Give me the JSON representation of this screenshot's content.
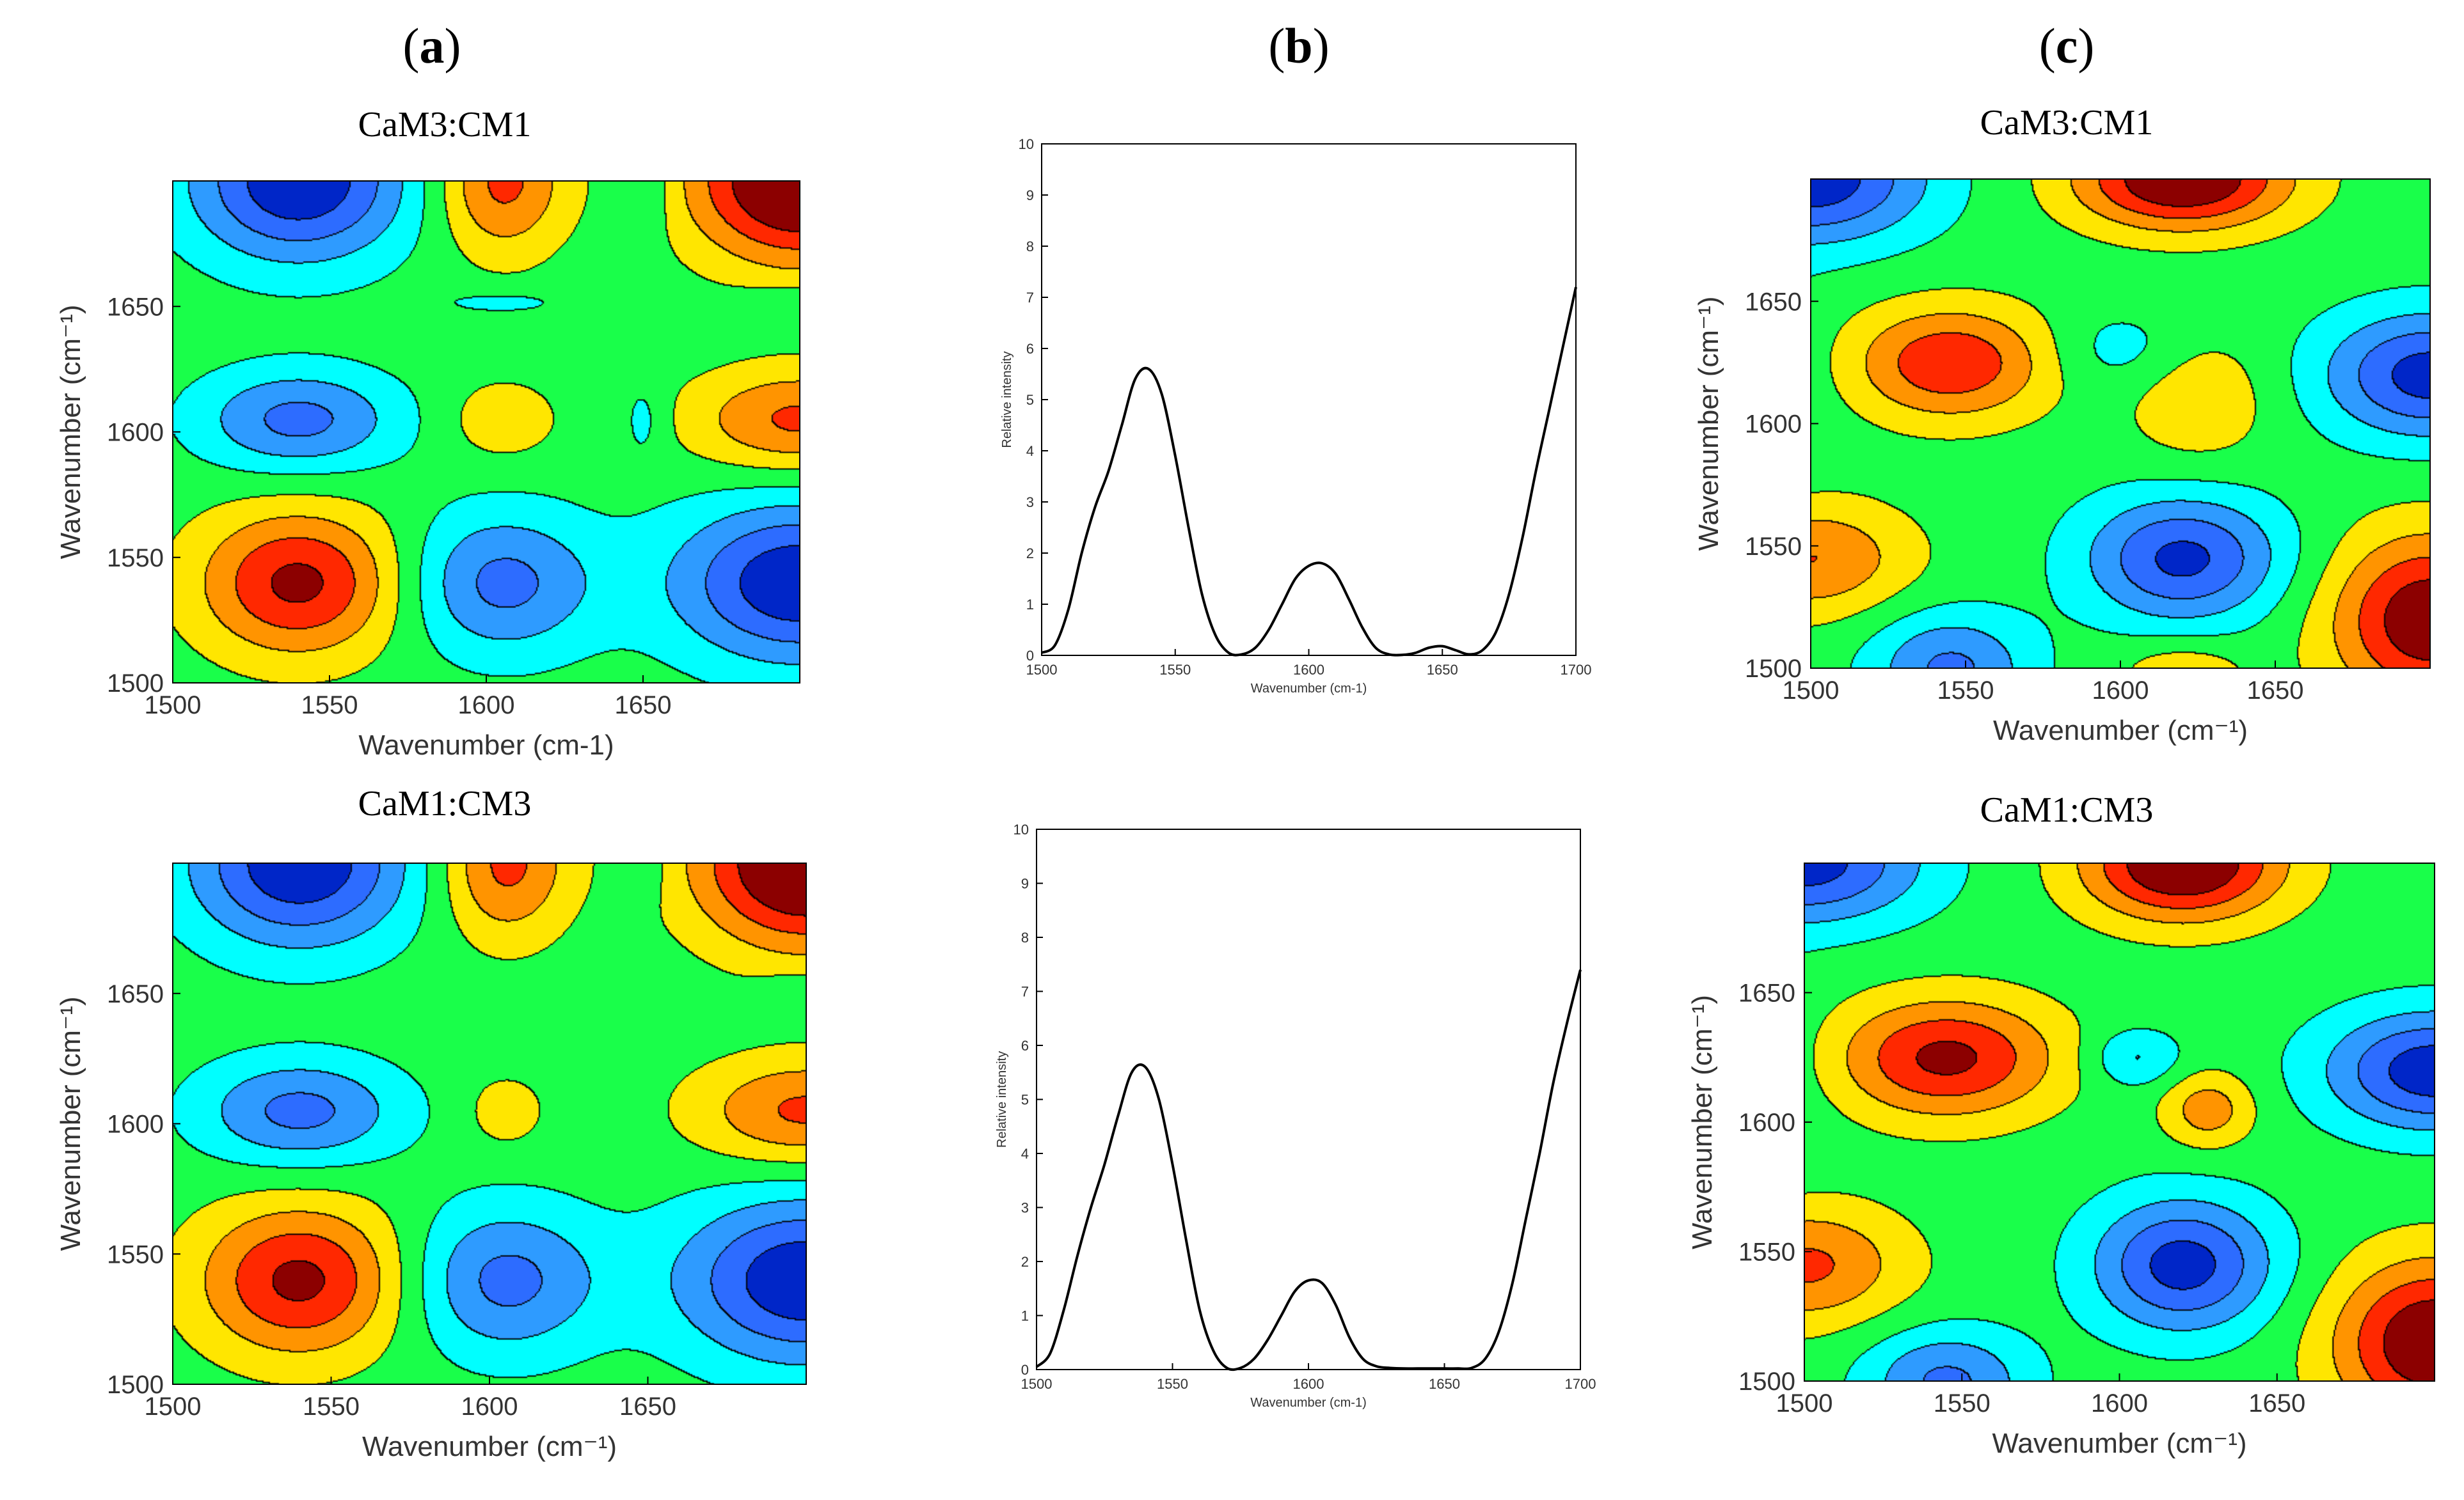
{
  "panel_labels": [
    "a",
    "b",
    "c"
  ],
  "colors": {
    "contour_palette": [
      "#00007a",
      "#0026c8",
      "#2d6cff",
      "#2e9bff",
      "#00ffff",
      "#19ff4a",
      "#ffe600",
      "#ff9400",
      "#ff2800",
      "#8c0000"
    ],
    "background_level": "#19ff4a",
    "line": "#000000"
  },
  "chart_data": [
    {
      "id": "a1",
      "type": "heatmap",
      "title": "CaM3:CM1",
      "xlabel": "Wavenumber (cm-1)",
      "ylabel": "Wavenumber (cm⁻¹)",
      "xlim": [
        1500,
        1700
      ],
      "ylim": [
        1500,
        1700
      ],
      "xticks": [
        "1500",
        "1550",
        "1600",
        "1650"
      ],
      "yticks": [
        "1500",
        "1550",
        "1600",
        "1650"
      ],
      "peaks": [
        {
          "x": 1540,
          "y": 1540,
          "amp": 3.6,
          "sx": 22,
          "sy": 20
        },
        {
          "x": 1605,
          "y": 1540,
          "amp": -2.7,
          "sx": 21,
          "sy": 20
        },
        {
          "x": 1700,
          "y": 1540,
          "amp": -4.2,
          "sx": 28,
          "sy": 22
        },
        {
          "x": 1540,
          "y": 1605,
          "amp": -2.7,
          "sx": 22,
          "sy": 14
        },
        {
          "x": 1605,
          "y": 1605,
          "amp": 1.2,
          "sx": 12,
          "sy": 11
        },
        {
          "x": 1700,
          "y": 1605,
          "amp": 2.6,
          "sx": 24,
          "sy": 14
        },
        {
          "x": 1650,
          "y": 1605,
          "amp": -0.9,
          "sx": 5,
          "sy": 12
        },
        {
          "x": 1540,
          "y": 1700,
          "amp": -4.2,
          "sx": 24,
          "sy": 22
        },
        {
          "x": 1605,
          "y": 1700,
          "amp": 2.7,
          "sx": 14,
          "sy": 20
        },
        {
          "x": 1700,
          "y": 1700,
          "amp": 5.0,
          "sx": 24,
          "sy": 22
        },
        {
          "x": 1650,
          "y": 1700,
          "amp": -1.0,
          "sx": 6,
          "sy": 16
        },
        {
          "x": 1605,
          "y": 1652,
          "amp": -0.8,
          "sx": 16,
          "sy": 4
        },
        {
          "x": 1700,
          "y": 1652,
          "amp": -0.8,
          "sx": 16,
          "sy": 4
        }
      ]
    },
    {
      "id": "b1",
      "type": "line",
      "xlabel": "Wavenumber (cm-1)",
      "ylabel": "Relative intensity",
      "xlim": [
        1500,
        1700
      ],
      "ylim": [
        0,
        10
      ],
      "xticks": [
        "1500",
        "1550",
        "1600",
        "1650",
        "1700"
      ],
      "yticks": [
        "0",
        "1",
        "2",
        "3",
        "4",
        "5",
        "6",
        "7",
        "8",
        "9",
        "10"
      ],
      "x": [
        1500,
        1505,
        1510,
        1515,
        1520,
        1525,
        1530,
        1535,
        1540,
        1545,
        1550,
        1555,
        1560,
        1565,
        1570,
        1575,
        1580,
        1585,
        1590,
        1595,
        1600,
        1605,
        1610,
        1615,
        1620,
        1625,
        1630,
        1635,
        1640,
        1645,
        1650,
        1655,
        1660,
        1665,
        1670,
        1675,
        1680,
        1685,
        1690,
        1695,
        1700
      ],
      "y": [
        0.05,
        0.2,
        0.9,
        2.0,
        2.9,
        3.6,
        4.5,
        5.4,
        5.6,
        5.1,
        3.9,
        2.5,
        1.2,
        0.4,
        0.05,
        0.02,
        0.15,
        0.5,
        1.0,
        1.5,
        1.75,
        1.8,
        1.6,
        1.1,
        0.55,
        0.15,
        0.02,
        0.01,
        0.05,
        0.15,
        0.18,
        0.1,
        0.02,
        0.1,
        0.45,
        1.2,
        2.3,
        3.6,
        4.8,
        6.0,
        7.2
      ]
    },
    {
      "id": "c1",
      "type": "heatmap",
      "title": "CaM3:CM1",
      "xlabel": "Wavenumber (cm⁻¹)",
      "ylabel": "Wavenumber (cm⁻¹)",
      "xlim": [
        1500,
        1700
      ],
      "ylim": [
        1500,
        1700
      ],
      "xticks": [
        "1500",
        "1550",
        "1600",
        "1650"
      ],
      "yticks": [
        "1500",
        "1550",
        "1600",
        "1650"
      ],
      "peaks": [
        {
          "x": 1545,
          "y": 1625,
          "amp": 3.2,
          "sx": 22,
          "sy": 16
        },
        {
          "x": 1620,
          "y": 1545,
          "amp": -3.6,
          "sx": 22,
          "sy": 18
        },
        {
          "x": 1620,
          "y": 1700,
          "amp": 4.5,
          "sx": 24,
          "sy": 14
        },
        {
          "x": 1700,
          "y": 1620,
          "amp": -3.8,
          "sx": 24,
          "sy": 18
        },
        {
          "x": 1500,
          "y": 1700,
          "amp": -4.0,
          "sx": 26,
          "sy": 18
        },
        {
          "x": 1700,
          "y": 1520,
          "amp": 4.2,
          "sx": 22,
          "sy": 24
        },
        {
          "x": 1500,
          "y": 1545,
          "amp": 2.4,
          "sx": 22,
          "sy": 16
        },
        {
          "x": 1545,
          "y": 1500,
          "amp": -2.6,
          "sx": 18,
          "sy": 16
        },
        {
          "x": 1625,
          "y": 1610,
          "amp": 1.3,
          "sx": 16,
          "sy": 18
        },
        {
          "x": 1600,
          "y": 1630,
          "amp": -1.0,
          "sx": 16,
          "sy": 12
        },
        {
          "x": 1470,
          "y": 1620,
          "amp": -1.5,
          "sx": 18,
          "sy": 30
        },
        {
          "x": 1620,
          "y": 1500,
          "amp": 1.2,
          "sx": 14,
          "sy": 8
        }
      ]
    },
    {
      "id": "a2",
      "type": "heatmap",
      "title": "CaM1:CM3",
      "xlabel": "Wavenumber (cm⁻¹)",
      "ylabel": "Wavenumber (cm⁻¹)",
      "xlim": [
        1500,
        1700
      ],
      "ylim": [
        1500,
        1700
      ],
      "xticks": [
        "1500",
        "1550",
        "1600",
        "1650"
      ],
      "yticks": [
        "1500",
        "1550",
        "1600",
        "1650"
      ],
      "peaks": [
        {
          "x": 1540,
          "y": 1540,
          "amp": 3.6,
          "sx": 22,
          "sy": 20
        },
        {
          "x": 1605,
          "y": 1540,
          "amp": -2.7,
          "sx": 21,
          "sy": 20
        },
        {
          "x": 1700,
          "y": 1540,
          "amp": -4.2,
          "sx": 28,
          "sy": 22
        },
        {
          "x": 1540,
          "y": 1605,
          "amp": -2.7,
          "sx": 22,
          "sy": 14
        },
        {
          "x": 1605,
          "y": 1605,
          "amp": 1.2,
          "sx": 8,
          "sy": 9
        },
        {
          "x": 1700,
          "y": 1605,
          "amp": 2.6,
          "sx": 24,
          "sy": 14
        },
        {
          "x": 1540,
          "y": 1700,
          "amp": -4.2,
          "sx": 24,
          "sy": 22
        },
        {
          "x": 1605,
          "y": 1700,
          "amp": 2.7,
          "sx": 14,
          "sy": 20
        },
        {
          "x": 1700,
          "y": 1700,
          "amp": 5.0,
          "sx": 24,
          "sy": 22
        },
        {
          "x": 1650,
          "y": 1700,
          "amp": -1.0,
          "sx": 3,
          "sy": 10
        },
        {
          "x": 1700,
          "y": 1652,
          "amp": -0.8,
          "sx": 10,
          "sy": 4
        }
      ]
    },
    {
      "id": "b2",
      "type": "line",
      "xlabel": "Wavenumber (cm-1)",
      "ylabel": "Relative intensity",
      "xlim": [
        1500,
        1700
      ],
      "ylim": [
        0,
        10
      ],
      "xticks": [
        "1500",
        "1550",
        "1600",
        "1650",
        "1700"
      ],
      "yticks": [
        "0",
        "1",
        "2",
        "3",
        "4",
        "5",
        "6",
        "7",
        "8",
        "9",
        "10"
      ],
      "x": [
        1500,
        1505,
        1510,
        1515,
        1520,
        1525,
        1530,
        1535,
        1540,
        1545,
        1550,
        1555,
        1560,
        1565,
        1570,
        1575,
        1580,
        1585,
        1590,
        1595,
        1600,
        1605,
        1610,
        1615,
        1620,
        1625,
        1630,
        1635,
        1640,
        1645,
        1650,
        1655,
        1660,
        1665,
        1670,
        1675,
        1680,
        1685,
        1690,
        1695,
        1700
      ],
      "y": [
        0.05,
        0.3,
        1.1,
        2.1,
        3.0,
        3.8,
        4.7,
        5.5,
        5.6,
        5.0,
        3.8,
        2.4,
        1.1,
        0.35,
        0.03,
        0.03,
        0.2,
        0.55,
        1.0,
        1.45,
        1.65,
        1.6,
        1.2,
        0.6,
        0.2,
        0.06,
        0.03,
        0.02,
        0.02,
        0.02,
        0.02,
        0.02,
        0.03,
        0.2,
        0.7,
        1.6,
        2.8,
        4.0,
        5.3,
        6.4,
        7.4
      ]
    },
    {
      "id": "c2",
      "type": "heatmap",
      "title": "CaM1:CM3",
      "xlabel": "Wavenumber (cm⁻¹)",
      "ylabel": "Wavenumber (cm⁻¹)",
      "xlim": [
        1500,
        1700
      ],
      "ylim": [
        1500,
        1700
      ],
      "xticks": [
        "1500",
        "1550",
        "1600",
        "1650"
      ],
      "yticks": [
        "1500",
        "1550",
        "1600",
        "1650"
      ],
      "peaks": [
        {
          "x": 1545,
          "y": 1625,
          "amp": 3.6,
          "sx": 24,
          "sy": 16
        },
        {
          "x": 1620,
          "y": 1545,
          "amp": -3.8,
          "sx": 20,
          "sy": 18
        },
        {
          "x": 1620,
          "y": 1700,
          "amp": 4.6,
          "sx": 22,
          "sy": 15
        },
        {
          "x": 1700,
          "y": 1620,
          "amp": -4.0,
          "sx": 24,
          "sy": 16
        },
        {
          "x": 1500,
          "y": 1700,
          "amp": -3.8,
          "sx": 26,
          "sy": 16
        },
        {
          "x": 1700,
          "y": 1515,
          "amp": 4.4,
          "sx": 22,
          "sy": 22
        },
        {
          "x": 1500,
          "y": 1545,
          "amp": 2.6,
          "sx": 22,
          "sy": 16
        },
        {
          "x": 1545,
          "y": 1500,
          "amp": -2.6,
          "sx": 18,
          "sy": 14
        },
        {
          "x": 1628,
          "y": 1605,
          "amp": 2.0,
          "sx": 10,
          "sy": 10
        },
        {
          "x": 1605,
          "y": 1625,
          "amp": -1.6,
          "sx": 10,
          "sy": 8
        },
        {
          "x": 1470,
          "y": 1620,
          "amp": -1.5,
          "sx": 18,
          "sy": 30
        }
      ]
    }
  ]
}
